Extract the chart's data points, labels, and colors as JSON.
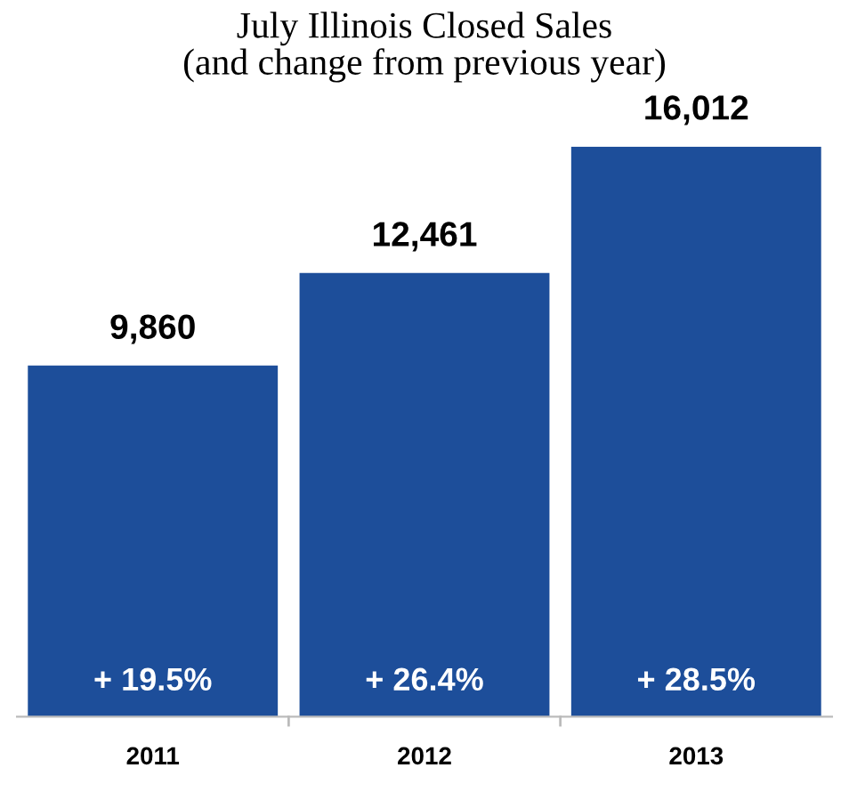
{
  "chart_data": {
    "type": "bar",
    "title": "July Illinois Closed Sales\n(and change from previous year)",
    "categories": [
      "2011",
      "2012",
      "2013"
    ],
    "values": [
      9860,
      12461,
      16012
    ],
    "color": "#1d4e9a",
    "data_labels": true,
    "value_labels": [
      "9,860",
      "12,461",
      "16,012"
    ],
    "annotations": [
      "+ 19.5%",
      "+ 26.4%",
      "+ 28.5%"
    ]
  }
}
